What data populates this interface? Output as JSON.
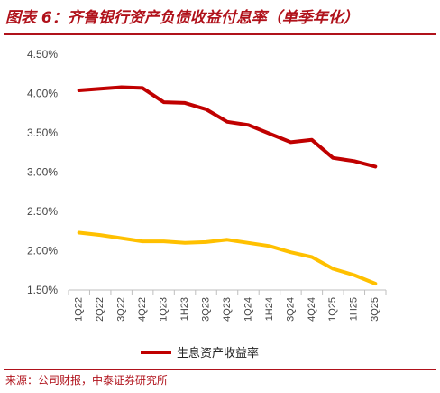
{
  "title": "图表 6：齐鲁银行资产负债收益付息率（单季年化）",
  "source": "来源：公司财报，中泰证券研究所",
  "chart_data": {
    "type": "line",
    "categories": [
      "1Q22",
      "2Q22",
      "3Q22",
      "4Q22",
      "1Q23",
      "1H23",
      "3Q23",
      "4Q23",
      "1Q24",
      "1H24",
      "3Q24",
      "4Q24",
      "1Q25",
      "1H25",
      "3Q25"
    ],
    "ylim": [
      1.5,
      4.5
    ],
    "yticks": [
      "1.50%",
      "2.00%",
      "2.50%",
      "3.00%",
      "3.50%",
      "4.00%",
      "4.50%"
    ],
    "yticks_values": [
      1.5,
      2.0,
      2.5,
      3.0,
      3.5,
      4.0,
      4.5
    ],
    "series": [
      {
        "name": "生息资产收益率",
        "color": "#c00000",
        "values": [
          4.04,
          4.06,
          4.08,
          4.07,
          3.89,
          3.88,
          3.8,
          3.64,
          3.6,
          3.49,
          3.38,
          3.41,
          3.18,
          3.14,
          3.07
        ]
      },
      {
        "name": "",
        "color": "#ffc000",
        "values": [
          2.23,
          2.2,
          2.16,
          2.12,
          2.12,
          2.1,
          2.11,
          2.14,
          2.1,
          2.06,
          1.98,
          1.92,
          1.77,
          1.69,
          1.58
        ]
      }
    ],
    "legend_position": "bottom",
    "grid": false
  }
}
